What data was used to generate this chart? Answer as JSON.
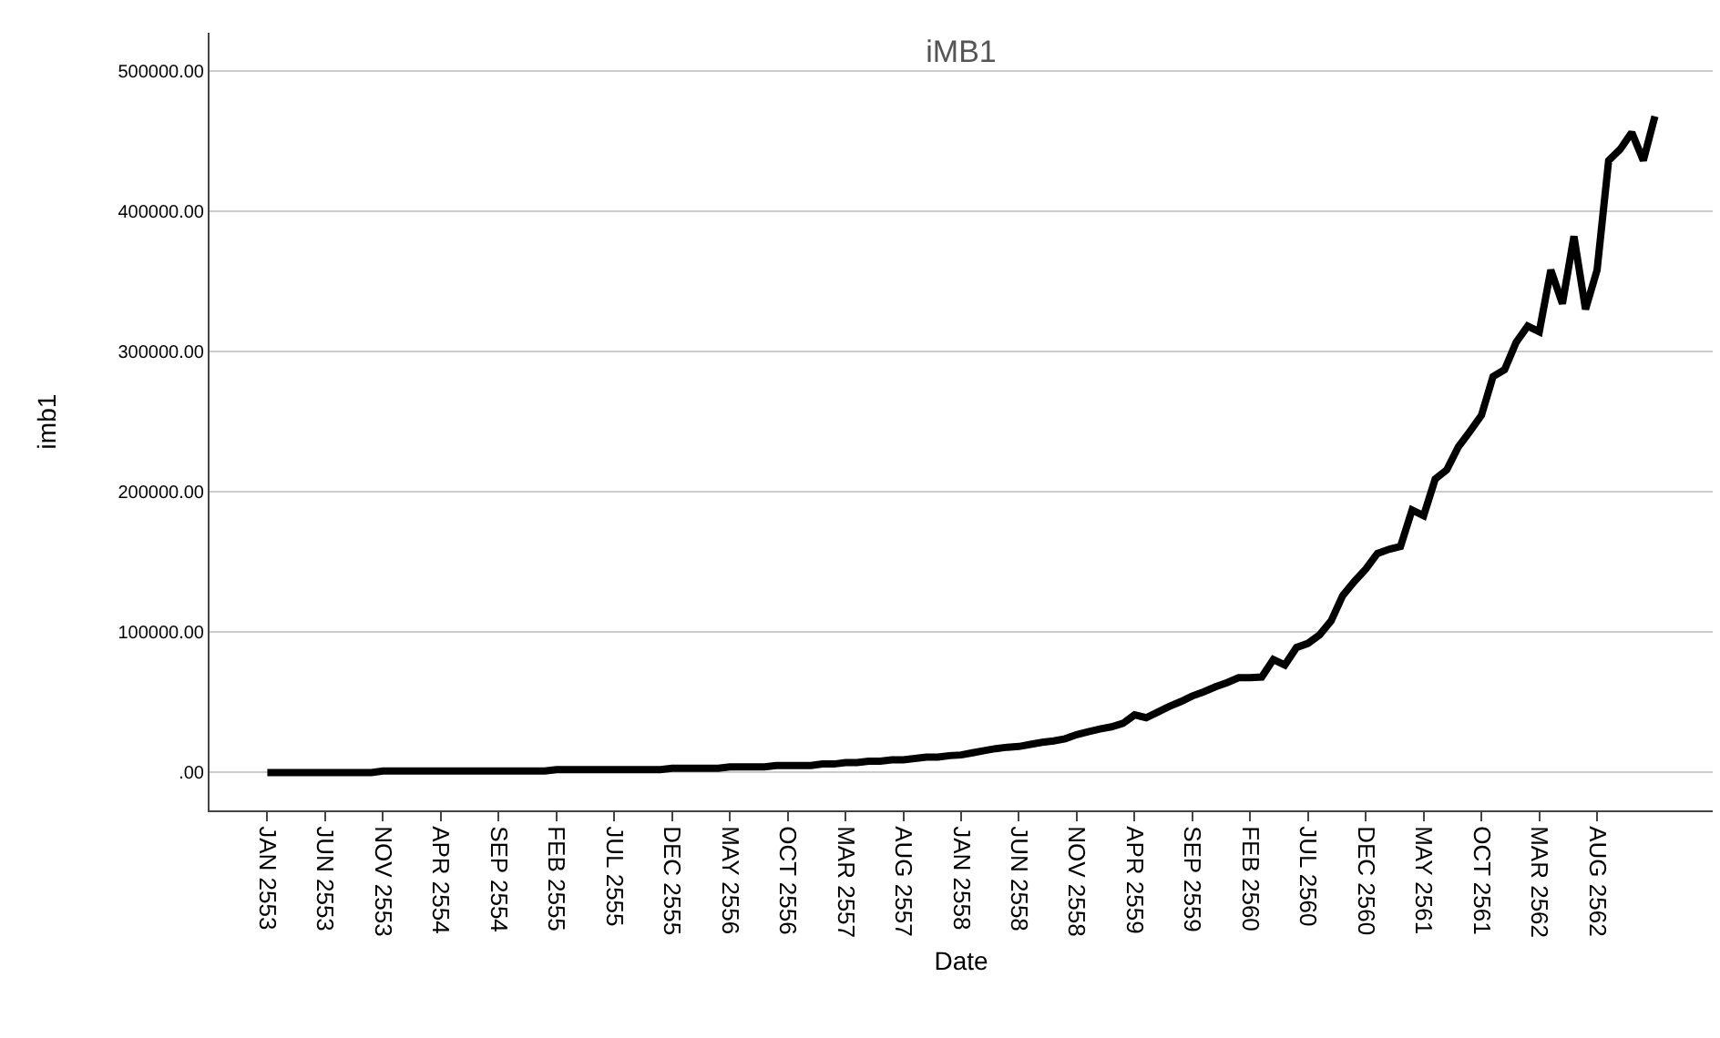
{
  "chart_data": {
    "type": "line",
    "title": "iMB1",
    "xlabel": "Date",
    "ylabel": "imb1",
    "categories": [
      "JAN 2553",
      null,
      null,
      null,
      null,
      "JUN 2553",
      null,
      null,
      null,
      null,
      "NOV 2553",
      null,
      null,
      null,
      null,
      "APR 2554",
      null,
      null,
      null,
      null,
      "SEP 2554",
      null,
      null,
      null,
      null,
      "FEB 2555",
      null,
      null,
      null,
      null,
      "JUL 2555",
      null,
      null,
      null,
      null,
      "DEC 2555",
      null,
      null,
      null,
      null,
      "MAY 2556",
      null,
      null,
      null,
      null,
      "OCT 2556",
      null,
      null,
      null,
      null,
      "MAR 2557",
      null,
      null,
      null,
      null,
      "AUG 2557",
      null,
      null,
      null,
      null,
      "JAN 2558",
      null,
      null,
      null,
      null,
      "JUN 2558",
      null,
      null,
      null,
      null,
      "NOV 2558",
      null,
      null,
      null,
      null,
      "APR 2559",
      null,
      null,
      null,
      null,
      "SEP 2559",
      null,
      null,
      null,
      null,
      "FEB 2560",
      null,
      null,
      null,
      null,
      "JUL 2560",
      null,
      null,
      null,
      null,
      "DEC 2560",
      null,
      null,
      null,
      null,
      "MAY 2561",
      null,
      null,
      null,
      null,
      "OCT 2561",
      null,
      null,
      null,
      null,
      "MAR 2562",
      null,
      null,
      null,
      null,
      "AUG 2562",
      null,
      null,
      null,
      null,
      null
    ],
    "series": [
      {
        "color": "#000000",
        "values": [
          0,
          0,
          0,
          0,
          0,
          0,
          0,
          0,
          0,
          0,
          1000,
          1000,
          1000,
          1000,
          1000,
          1000,
          1000,
          1000,
          1000,
          1000,
          1000,
          1000,
          1000,
          1000,
          1000,
          2000,
          2000,
          2000,
          2000,
          2000,
          2000,
          2000,
          2000,
          2000,
          2000,
          3000,
          3000,
          3000,
          3000,
          3000,
          4000,
          4000,
          4000,
          4000,
          5000,
          5000,
          5000,
          5000,
          6000,
          6000,
          7000,
          7000,
          8000,
          8000,
          9000,
          9000,
          10000,
          11000,
          11000,
          12000,
          12500,
          14000,
          15600,
          17000,
          18000,
          18500,
          20000,
          21500,
          22500,
          24000,
          27000,
          29000,
          31000,
          32500,
          35000,
          41000,
          39000,
          43000,
          47000,
          50500,
          54500,
          57500,
          61000,
          64000,
          67500,
          67500,
          68000,
          80500,
          76600,
          89000,
          92000,
          98000,
          108000,
          126000,
          136000,
          145000,
          156000,
          159000,
          161000,
          187000,
          183000,
          209000,
          215600,
          232000,
          243000,
          254500,
          282000,
          287000,
          306500,
          318000,
          314000,
          358000,
          334000,
          382000,
          330000,
          358000,
          436000,
          444000,
          456000,
          436000,
          467500
        ]
      }
    ],
    "ylim": [
      -27000,
      527000
    ],
    "yticks": [
      {
        "value": 0,
        "label": ".00"
      },
      {
        "value": 100000,
        "label": "100000.00"
      },
      {
        "value": 200000,
        "label": "200000.00"
      },
      {
        "value": 300000,
        "label": "300000.00"
      },
      {
        "value": 400000,
        "label": "400000.00"
      },
      {
        "value": 500000,
        "label": "500000.00"
      }
    ],
    "grid": "y",
    "marker": "none",
    "line_style": "solid"
  }
}
